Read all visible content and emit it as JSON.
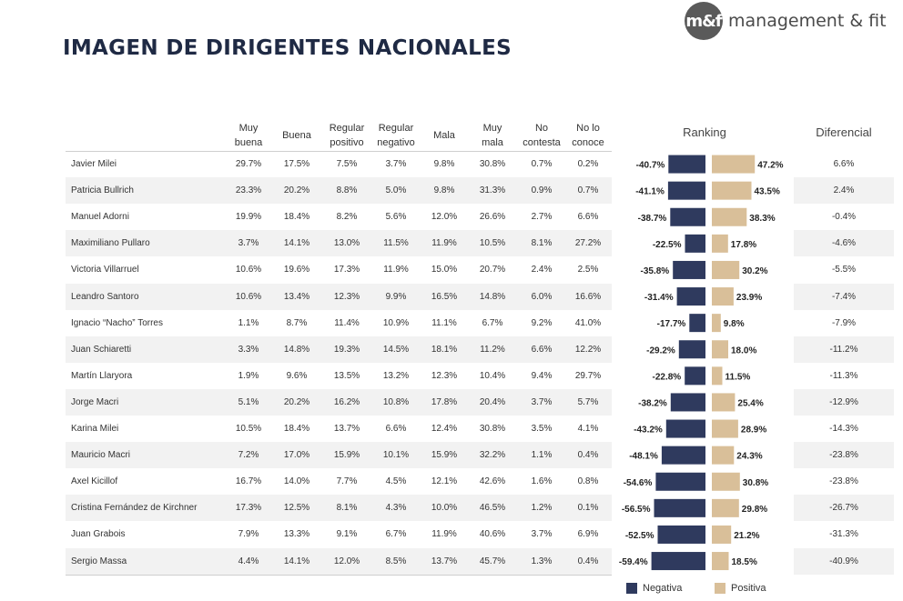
{
  "brand": {
    "logo_mark": "m&f",
    "name": "management & fit"
  },
  "title": "IMAGEN DE DIRIGENTES NACIONALES",
  "columns": [
    [
      "Muy",
      "buena"
    ],
    [
      "Buena"
    ],
    [
      "Regular",
      "positivo"
    ],
    [
      "Regular",
      "negativo"
    ],
    [
      "Mala"
    ],
    [
      "Muy",
      "mala"
    ],
    [
      "No",
      "contesta"
    ],
    [
      "No lo",
      "conoce"
    ]
  ],
  "ranking_header": "Ranking",
  "diferencial_header": "Diferencial",
  "legend": {
    "negative": "Negativa",
    "positive": "Positiva"
  },
  "colors": {
    "negative": "#2f3a5e",
    "positive": "#d9bf99",
    "shade": "#f2f2f2"
  },
  "chart_data": {
    "type": "bar",
    "title": "Ranking",
    "categories": [
      "Javier Milei",
      "Patricia Bullrich",
      "Manuel Adorni",
      "Maximiliano Pullaro",
      "Victoria Villarruel",
      "Leandro Santoro",
      "Ignacio “Nacho” Torres",
      "Juan Schiaretti",
      "Martín Llaryora",
      "Jorge Macri",
      "Karina Milei",
      "Mauricio Macri",
      "Axel Kicillof",
      "Cristina Fernández de Kirchner",
      "Juan Grabois",
      "Sergio Massa"
    ],
    "series": [
      {
        "name": "Negativa",
        "values": [
          -40.7,
          -41.1,
          -38.7,
          -22.5,
          -35.8,
          -31.4,
          -17.7,
          -29.2,
          -22.8,
          -38.2,
          -43.2,
          -48.1,
          -54.6,
          -56.5,
          -52.5,
          -59.4
        ],
        "labels": [
          "-40.7%",
          "-41.1%",
          "-38.7%",
          "-22.5%",
          "-35.8%",
          "-31.4%",
          "-17.7%",
          "-29.2%",
          "-22.8%",
          "-38.2%",
          "-43.2%",
          "-48.1%",
          "-54.6%",
          "-56.5%",
          "-52.5%",
          "-59.4%"
        ]
      },
      {
        "name": "Positiva",
        "values": [
          47.2,
          43.5,
          38.3,
          17.8,
          30.2,
          23.9,
          9.8,
          18.0,
          11.5,
          25.4,
          28.9,
          24.3,
          30.8,
          29.8,
          21.2,
          18.5
        ],
        "labels": [
          "47.2%",
          "43.5%",
          "38.3%",
          "17.8%",
          "30.2%",
          "23.9%",
          "9.8%",
          "18.0%",
          "11.5%",
          "25.4%",
          "28.9%",
          "24.3%",
          "30.8%",
          "29.8%",
          "21.2%",
          "18.5%"
        ]
      }
    ],
    "xlim": [
      -60,
      60
    ]
  },
  "rows": [
    {
      "name": "Javier Milei",
      "values": [
        "29.7%",
        "17.5%",
        "7.5%",
        "3.7%",
        "9.8%",
        "30.8%",
        "0.7%",
        "0.2%"
      ],
      "diferencial": "6.6%"
    },
    {
      "name": "Patricia Bullrich",
      "values": [
        "23.3%",
        "20.2%",
        "8.8%",
        "5.0%",
        "9.8%",
        "31.3%",
        "0.9%",
        "0.7%"
      ],
      "diferencial": "2.4%"
    },
    {
      "name": "Manuel Adorni",
      "values": [
        "19.9%",
        "18.4%",
        "8.2%",
        "5.6%",
        "12.0%",
        "26.6%",
        "2.7%",
        "6.6%"
      ],
      "diferencial": "-0.4%"
    },
    {
      "name": "Maximiliano Pullaro",
      "values": [
        "3.7%",
        "14.1%",
        "13.0%",
        "11.5%",
        "11.9%",
        "10.5%",
        "8.1%",
        "27.2%"
      ],
      "diferencial": "-4.6%"
    },
    {
      "name": "Victoria Villarruel",
      "values": [
        "10.6%",
        "19.6%",
        "17.3%",
        "11.9%",
        "15.0%",
        "20.7%",
        "2.4%",
        "2.5%"
      ],
      "diferencial": "-5.5%"
    },
    {
      "name": "Leandro Santoro",
      "values": [
        "10.6%",
        "13.4%",
        "12.3%",
        "9.9%",
        "16.5%",
        "14.8%",
        "6.0%",
        "16.6%"
      ],
      "diferencial": "-7.4%"
    },
    {
      "name": "Ignacio “Nacho” Torres",
      "values": [
        "1.1%",
        "8.7%",
        "11.4%",
        "10.9%",
        "11.1%",
        "6.7%",
        "9.2%",
        "41.0%"
      ],
      "diferencial": "-7.9%"
    },
    {
      "name": "Juan Schiaretti",
      "values": [
        "3.3%",
        "14.8%",
        "19.3%",
        "14.5%",
        "18.1%",
        "11.2%",
        "6.6%",
        "12.2%"
      ],
      "diferencial": "-11.2%"
    },
    {
      "name": "Martín Llaryora",
      "values": [
        "1.9%",
        "9.6%",
        "13.5%",
        "13.2%",
        "12.3%",
        "10.4%",
        "9.4%",
        "29.7%"
      ],
      "diferencial": "-11.3%"
    },
    {
      "name": "Jorge Macri",
      "values": [
        "5.1%",
        "20.2%",
        "16.2%",
        "10.8%",
        "17.8%",
        "20.4%",
        "3.7%",
        "5.7%"
      ],
      "diferencial": "-12.9%"
    },
    {
      "name": "Karina Milei",
      "values": [
        "10.5%",
        "18.4%",
        "13.7%",
        "6.6%",
        "12.4%",
        "30.8%",
        "3.5%",
        "4.1%"
      ],
      "diferencial": "-14.3%"
    },
    {
      "name": "Mauricio Macri",
      "values": [
        "7.2%",
        "17.0%",
        "15.9%",
        "10.1%",
        "15.9%",
        "32.2%",
        "1.1%",
        "0.4%"
      ],
      "diferencial": "-23.8%"
    },
    {
      "name": "Axel Kicillof",
      "values": [
        "16.7%",
        "14.0%",
        "7.7%",
        "4.5%",
        "12.1%",
        "42.6%",
        "1.6%",
        "0.8%"
      ],
      "diferencial": "-23.8%"
    },
    {
      "name": "Cristina Fernández de Kirchner",
      "values": [
        "17.3%",
        "12.5%",
        "8.1%",
        "4.3%",
        "10.0%",
        "46.5%",
        "1.2%",
        "0.1%"
      ],
      "diferencial": "-26.7%"
    },
    {
      "name": "Juan Grabois",
      "values": [
        "7.9%",
        "13.3%",
        "9.1%",
        "6.7%",
        "11.9%",
        "40.6%",
        "3.7%",
        "6.9%"
      ],
      "diferencial": "-31.3%"
    },
    {
      "name": "Sergio Massa",
      "values": [
        "4.4%",
        "14.1%",
        "12.0%",
        "8.5%",
        "13.7%",
        "45.7%",
        "1.3%",
        "0.4%"
      ],
      "diferencial": "-40.9%"
    }
  ]
}
